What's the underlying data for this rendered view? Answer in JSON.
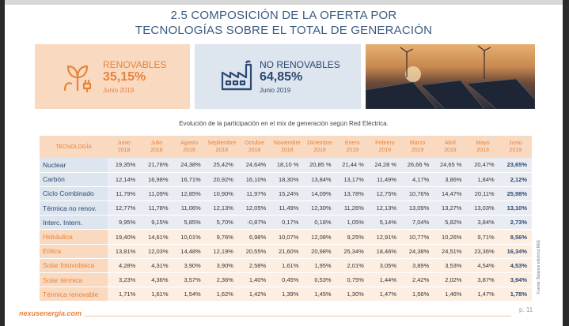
{
  "title_line1": "2.5 COMPOSICIÓN DE LA OFERTA POR",
  "title_line2": "TECNOLOGÍAS SOBRE EL TOTAL DE  GENERACIÓN",
  "renovables": {
    "label": "RENOVABLES",
    "value": "35,15%",
    "date": "Junio 2019",
    "icon": "plant-plug-icon"
  },
  "no_renovables": {
    "label": "NO RENOVABLES",
    "value": "64,85%",
    "date": "Junio 2019",
    "icon": "factory-icon"
  },
  "photo": "solar-panels-wind-turbines-photo",
  "subtitle": "Evolución de la participación en el mix de generación según Red Eléctrica.",
  "table": {
    "tech_header": "TECNOLOGÍA",
    "months": [
      [
        "Junio",
        "2018"
      ],
      [
        "Julio",
        "2018"
      ],
      [
        "Agosto",
        "2018"
      ],
      [
        "Septiembre",
        "2018"
      ],
      [
        "Octubre",
        "2018"
      ],
      [
        "Noviembre",
        "2018"
      ],
      [
        "Diciembre",
        "2018"
      ],
      [
        "Enero",
        "2019"
      ],
      [
        "Febrero",
        "2019"
      ],
      [
        "Marzo",
        "2019"
      ],
      [
        "Abril",
        "2019"
      ],
      [
        "Mayo",
        "2019"
      ],
      [
        "Junio",
        "2019"
      ]
    ],
    "rows": [
      {
        "name": "Nuclear",
        "group": "nonren",
        "values": [
          "19,35%",
          "21,76%",
          "24,38%",
          "25,42%",
          "24,64%",
          "18,10 %",
          "20,85 %",
          "21,44 %",
          "24,28 %",
          "26,66 %",
          "24,65 %",
          "20,47%",
          "23,65%"
        ]
      },
      {
        "name": "Carbón",
        "group": "nonren",
        "values": [
          "12,14%",
          "16,98%",
          "16,71%",
          "20,92%",
          "16,10%",
          "18,30%",
          "13,84%",
          "13,17%",
          "11,49%",
          "4,17%",
          "3,86%",
          "1,84%",
          "2,12%"
        ]
      },
      {
        "name": "Ciclo Combinado",
        "group": "nonren",
        "values": [
          "11,79%",
          "11,09%",
          "12,85%",
          "10,90%",
          "11,97%",
          "15,24%",
          "14,09%",
          "13,78%",
          "12,75%",
          "10,76%",
          "14,47%",
          "20,11%",
          "25,98%"
        ]
      },
      {
        "name": "Térmica no renov.",
        "group": "nonren",
        "values": [
          "12,77%",
          "11,78%",
          "11,06%",
          "12,13%",
          "12,05%",
          "11,49%",
          "12,30%",
          "11,26%",
          "12,13%",
          "13,09%",
          "13,27%",
          "13,03%",
          "13,10%"
        ]
      },
      {
        "name": "Interc. Intern.",
        "group": "nonren",
        "values": [
          "9,95%",
          "9,15%",
          "5,85%",
          "5,70%",
          "-0,87%",
          "0,17%",
          "0,18%",
          "1,05%",
          "5,14%",
          "7,04%",
          "5,82%",
          "3,84%",
          "2,73%"
        ]
      },
      {
        "name": "Hidráulica",
        "group": "ren",
        "values": [
          "19,40%",
          "14,61%",
          "10,01%",
          "9,76%",
          "6,98%",
          "10,07%",
          "12,08%",
          "9,25%",
          "12,91%",
          "10,77%",
          "10,26%",
          "9,71%",
          "8,56%"
        ]
      },
      {
        "name": "Eólica",
        "group": "ren",
        "values": [
          "13,81%",
          "12,03%",
          "14,48%",
          "12,19%",
          "20,55%",
          "21,60%",
          "20,98%",
          "25,34%",
          "18,46%",
          "24,38%",
          "24,51%",
          "23,36%",
          "16,34%"
        ]
      },
      {
        "name": "Solar fotovoltaica",
        "group": "ren",
        "values": [
          "4,28%",
          "4,31%",
          "3,90%",
          "3,90%",
          "2,58%",
          "1,61%",
          "1,95%",
          "2,01%",
          "3,05%",
          "3,89%",
          "3,53%",
          "4,54%",
          "4,53%"
        ]
      },
      {
        "name": "Solar térmica",
        "group": "ren",
        "values": [
          "3,23%",
          "4,36%",
          "3,57%",
          "2,36%",
          "1,40%",
          "0,45%",
          "0,53%",
          "0,75%",
          "1,44%",
          "2,42%",
          "2,02%",
          "3,87%",
          "3,94%"
        ]
      },
      {
        "name": "Térmica renovable",
        "group": "ren",
        "values": [
          "1,71%",
          "1,61%",
          "1,54%",
          "1,62%",
          "1,42%",
          "1,39%",
          "1,45%",
          "1,30%",
          "1,47%",
          "1,56%",
          "1,46%",
          "1,47%",
          "1,78%"
        ]
      }
    ]
  },
  "source": "Fuente: Balance eléctrico REE",
  "site": "nexusenergia.com",
  "page": "p. 11",
  "colors": {
    "accent_orange": "#e8833a",
    "navy": "#2d4a72",
    "title_blue": "#3a5b80"
  }
}
